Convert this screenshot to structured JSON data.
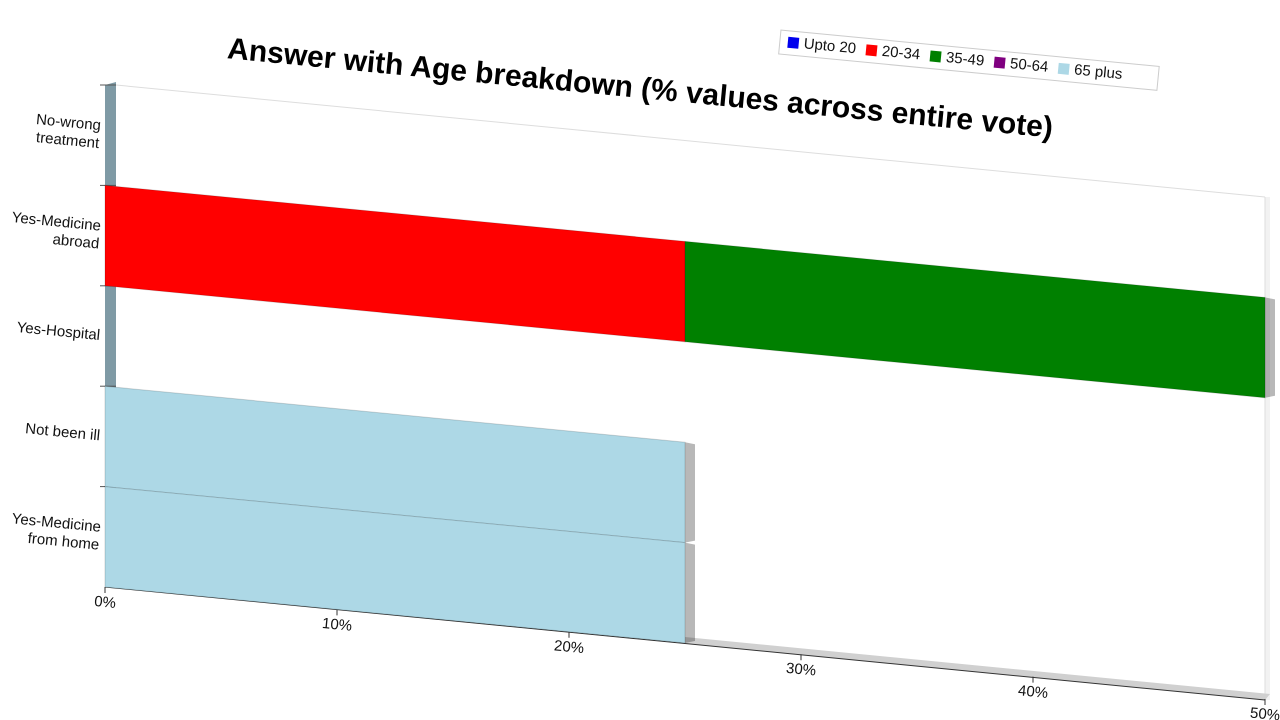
{
  "chart_data": {
    "type": "bar",
    "orientation": "horizontal",
    "stacked": true,
    "title": "Answer with Age breakdown (% values across entire vote)",
    "categories": [
      "No-wrong\ntreatment",
      "Yes-Medicine\nabroad",
      "Yes-Hospital",
      "Not been ill",
      "Yes-Medicine\nfrom home"
    ],
    "series": [
      {
        "name": "Upto 20",
        "color": "#0000ee",
        "values": [
          0,
          0,
          0,
          0,
          0
        ]
      },
      {
        "name": "20-34",
        "color": "#ff0000",
        "values": [
          0,
          25,
          0,
          0,
          0
        ]
      },
      {
        "name": "35-49",
        "color": "#008000",
        "values": [
          0,
          25,
          0,
          0,
          0
        ]
      },
      {
        "name": "50-64",
        "color": "#800080",
        "values": [
          0,
          0,
          0,
          0,
          0
        ]
      },
      {
        "name": "65 plus",
        "color": "#add8e6",
        "values": [
          0,
          0,
          0,
          25,
          25
        ]
      }
    ],
    "xlim": [
      0,
      50
    ],
    "xticks": [
      {
        "value": 0,
        "label": "0%"
      },
      {
        "value": 10,
        "label": "10%"
      },
      {
        "value": 20,
        "label": "20%"
      },
      {
        "value": 30,
        "label": "30%"
      },
      {
        "value": 40,
        "label": "40%"
      },
      {
        "value": 50,
        "label": "50%"
      }
    ],
    "legend": "top-right"
  }
}
